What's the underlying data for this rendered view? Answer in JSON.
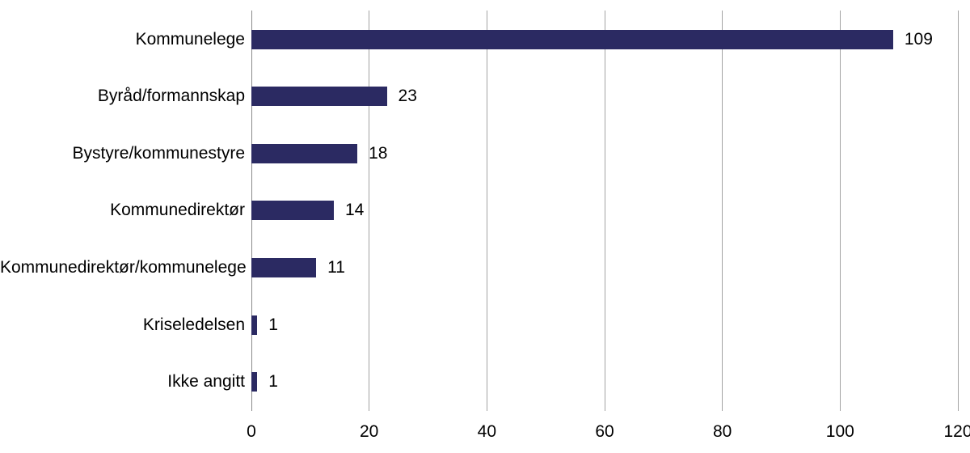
{
  "chart_data": {
    "type": "bar",
    "orientation": "horizontal",
    "title": "",
    "xlabel": "",
    "ylabel": "",
    "categories": [
      "Kommunelege",
      "Byråd/formannskap",
      "Bystyre/kommunestyre",
      "Kommunedirektør",
      "Kommunedirektør/kommunelege",
      "Kriseledelsen",
      "Ikke angitt"
    ],
    "values": [
      109,
      23,
      18,
      14,
      11,
      1,
      1
    ],
    "value_labels": [
      "109",
      "23",
      "18",
      "14",
      "11",
      "1",
      "1"
    ],
    "xlim": [
      0,
      120
    ],
    "x_ticks": [
      0,
      20,
      40,
      60,
      80,
      100,
      120
    ],
    "x_tick_labels": [
      "0",
      "20",
      "40",
      "60",
      "80",
      "100",
      "120"
    ],
    "grid": "vertical-gridlines-on",
    "legend": "none",
    "colors": {
      "bar": "#2b2a62",
      "gridline": "#a3a3a3",
      "zero_axis_line": "#8a8a8a",
      "text": "#000000",
      "background": "#ffffff"
    }
  }
}
